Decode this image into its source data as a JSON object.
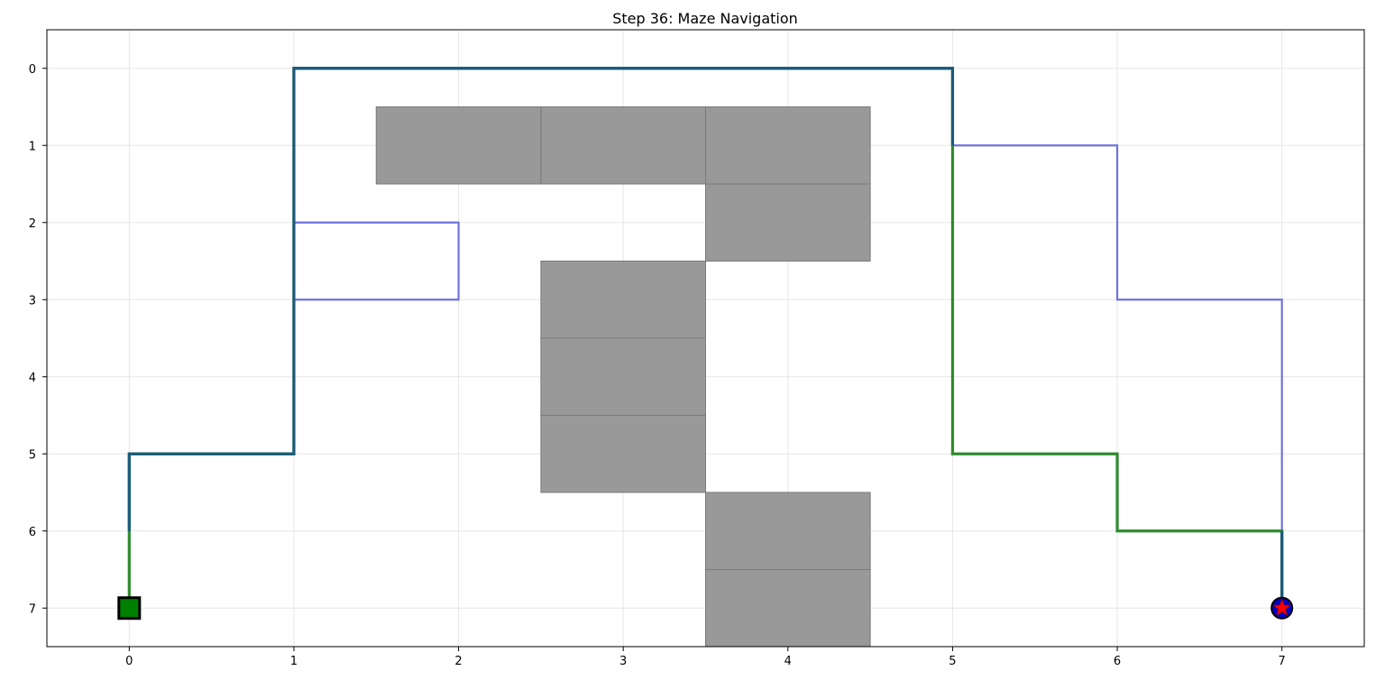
{
  "chart_data": {
    "type": "line",
    "title": "Step 36: Maze Navigation",
    "xlabel": "",
    "ylabel": "",
    "xlim": [
      -0.5,
      7.5
    ],
    "ylim": [
      7.5,
      -0.5
    ],
    "y_inverted": true,
    "grid": true,
    "x_ticks": [
      "0",
      "1",
      "2",
      "3",
      "4",
      "5",
      "6",
      "7"
    ],
    "y_ticks": [
      "0",
      "1",
      "2",
      "3",
      "4",
      "5",
      "6",
      "7"
    ],
    "walls": [
      [
        1,
        2
      ],
      [
        1,
        3
      ],
      [
        1,
        4
      ],
      [
        2,
        4
      ],
      [
        3,
        3
      ],
      [
        4,
        3
      ],
      [
        5,
        3
      ],
      [
        6,
        4
      ],
      [
        7,
        4
      ]
    ],
    "series": [
      {
        "role": "explored",
        "color": "#6f73dd",
        "points": [
          [
            0,
            7
          ],
          [
            0,
            6
          ],
          [
            0,
            5
          ],
          [
            1,
            5
          ],
          [
            1,
            4
          ],
          [
            1,
            3
          ],
          [
            2,
            3
          ],
          [
            2,
            2
          ],
          [
            1,
            2
          ],
          [
            1,
            1
          ],
          [
            1,
            0
          ],
          [
            2,
            0
          ],
          [
            3,
            0
          ],
          [
            4,
            0
          ],
          [
            5,
            0
          ],
          [
            5,
            1
          ],
          [
            6,
            1
          ],
          [
            6,
            2
          ],
          [
            6,
            3
          ],
          [
            7,
            3
          ],
          [
            7,
            4
          ],
          [
            7,
            5
          ],
          [
            7,
            6
          ],
          [
            7,
            7
          ]
        ]
      },
      {
        "role": "optimal",
        "color": "#2e8b2e",
        "points": [
          [
            0,
            7
          ],
          [
            0,
            6
          ],
          [
            0,
            5
          ],
          [
            1,
            5
          ],
          [
            1,
            4
          ],
          [
            1,
            3
          ],
          [
            1,
            2
          ],
          [
            1,
            1
          ],
          [
            1,
            0
          ],
          [
            2,
            0
          ],
          [
            3,
            0
          ],
          [
            4,
            0
          ],
          [
            5,
            0
          ],
          [
            5,
            1
          ],
          [
            5,
            2
          ],
          [
            5,
            3
          ],
          [
            5,
            4
          ],
          [
            5,
            5
          ],
          [
            6,
            5
          ],
          [
            6,
            6
          ],
          [
            7,
            6
          ],
          [
            7,
            7
          ]
        ]
      },
      {
        "role": "agent",
        "color": "#1a5a7a",
        "points": [
          [
            0,
            6
          ],
          [
            0,
            5
          ],
          [
            1,
            5
          ],
          [
            1,
            4
          ],
          [
            1,
            3
          ],
          [
            1,
            2
          ]
        ]
      },
      {
        "role": "agent",
        "color": "#1a5a7a",
        "points": [
          [
            1,
            2
          ],
          [
            1,
            1
          ],
          [
            1,
            0
          ],
          [
            2,
            0
          ],
          [
            3,
            0
          ],
          [
            4,
            0
          ],
          [
            5,
            0
          ],
          [
            5,
            1
          ]
        ]
      },
      {
        "role": "agent",
        "color": "#1a5a7a",
        "points": [
          [
            7,
            6
          ],
          [
            7,
            7
          ]
        ]
      }
    ],
    "start": {
      "x": 0,
      "y": 7,
      "color": "#008000"
    },
    "goal": {
      "x": 7,
      "y": 7,
      "color": "#ff0000"
    },
    "agent": {
      "x": 7,
      "y": 7,
      "color": "#0000cc"
    },
    "colors": {
      "wall": "#999999",
      "wall_edge": "#7a7a7a",
      "grid": "#e6e6e6"
    }
  }
}
